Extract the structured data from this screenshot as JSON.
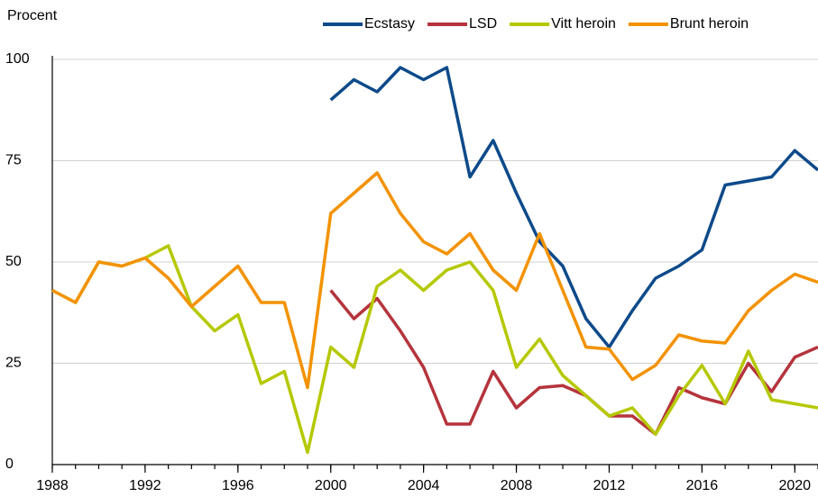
{
  "chart_data": {
    "type": "line",
    "ylabel": "Procent",
    "x": [
      1988,
      1989,
      1990,
      1991,
      1992,
      1993,
      1994,
      1995,
      1996,
      1997,
      1998,
      1999,
      2000,
      2001,
      2002,
      2003,
      2004,
      2005,
      2006,
      2007,
      2008,
      2009,
      2010,
      2011,
      2012,
      2013,
      2014,
      2015,
      2016,
      2017,
      2018,
      2019,
      2020,
      2021
    ],
    "series": [
      {
        "name": "Ecstasy",
        "color": "#0d4a8a",
        "values": [
          null,
          null,
          null,
          null,
          null,
          null,
          null,
          null,
          null,
          null,
          null,
          null,
          90,
          95,
          92,
          98,
          95,
          98,
          71,
          80,
          67,
          55,
          49,
          36,
          29,
          38,
          46,
          49,
          53,
          69,
          70,
          71,
          77.5,
          72.7
        ]
      },
      {
        "name": "LSD",
        "color": "#b5343c",
        "values": [
          null,
          null,
          null,
          null,
          null,
          null,
          null,
          null,
          null,
          null,
          null,
          null,
          43,
          36,
          41,
          33,
          24,
          10,
          10,
          23,
          14,
          19,
          19.5,
          17,
          12,
          12,
          7.5,
          19,
          16.5,
          15,
          25,
          18,
          26.5,
          29
        ]
      },
      {
        "name": "Vitt heroin",
        "color": "#b5c800",
        "values": [
          43,
          40,
          50,
          49,
          51,
          54,
          39,
          33,
          37,
          20,
          23,
          3,
          29,
          24,
          44,
          48,
          43,
          48,
          50,
          43,
          24,
          31,
          22,
          17,
          12,
          14,
          7.5,
          17,
          24.5,
          15,
          28,
          16,
          15,
          14
        ]
      },
      {
        "name": "Brunt heroin",
        "color": "#f39200",
        "values": [
          43,
          40,
          50,
          49,
          51,
          46,
          39,
          44,
          49,
          40,
          40,
          19,
          62,
          67,
          72,
          62,
          55,
          52,
          57,
          48,
          43,
          57,
          43,
          29,
          28.5,
          21,
          24.5,
          32,
          30.5,
          30,
          38,
          43,
          47,
          45
        ]
      }
    ],
    "xlim": [
      1988,
      2021
    ],
    "xticks": [
      1988,
      1992,
      1996,
      2000,
      2004,
      2008,
      2012,
      2016,
      2020
    ],
    "ylim": [
      0,
      100
    ],
    "yticks": [
      0,
      25,
      50,
      75,
      100
    ],
    "grid": true,
    "legend": "top"
  }
}
